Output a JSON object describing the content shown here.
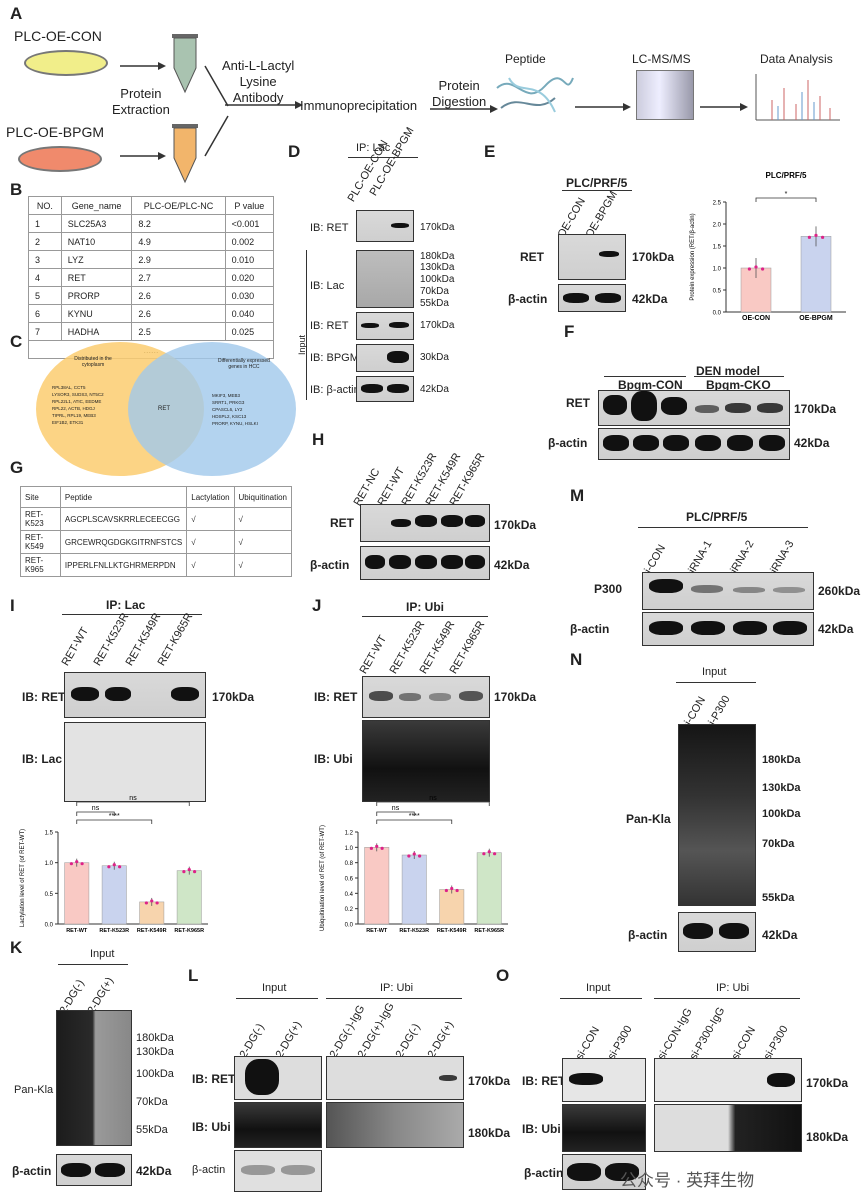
{
  "panelA": {
    "letter": "A",
    "sample1": "PLC-OE-CON",
    "sample2": "PLC-OE-BPGM",
    "protein_extraction": "Protein\nExtraction",
    "antibody": "Anti-L-Lactyl\nLysine\nAntibody",
    "ip": "Immunoprecipitation",
    "digestion": "Protein\nDigestion",
    "peptide": "Peptide",
    "lcms": "LC-MS/MS",
    "analysis": "Data Analysis"
  },
  "panelB": {
    "letter": "B",
    "headers": [
      "NO.",
      "Gene_name",
      "PLC-OE/PLC-NC",
      "P value"
    ],
    "rows": [
      [
        "1",
        "SLC25A3",
        "8.2",
        "<0.001"
      ],
      [
        "2",
        "NAT10",
        "4.9",
        "0.002"
      ],
      [
        "3",
        "LYZ",
        "2.9",
        "0.010"
      ],
      [
        "4",
        "RET",
        "2.7",
        "0.020"
      ],
      [
        "5",
        "PRORP",
        "2.6",
        "0.030"
      ],
      [
        "6",
        "KYNU",
        "2.6",
        "0.040"
      ],
      [
        "7",
        "HADHA",
        "2.5",
        "0.025"
      ]
    ],
    "more": "......"
  },
  "panelC": {
    "letter": "C",
    "left_title": "Distributed in the cytoplasm",
    "right_title": "Differentially expressed genes in HCC",
    "center": "RET",
    "left_genes": "RPL38AL, CCT5\nLYSOR3, SUDS3, NT5C2\nRPL22L1, ATIC, EEDME\nRPL22, ACTB, HDGJ\nTIPRL, RPL19, MEB3\nEIF1B2, ETK31",
    "right_genes": "MKIF3, MEB3\nSRRT1, PRKG3\nCPASCL6, LY2\nHDSPL2, KSC13\nPRORP, KYNU, HSLKI"
  },
  "panelD": {
    "letter": "D",
    "ip": "IP: Lac",
    "lanes": [
      "PLC-OE-CON",
      "PLC-OE-BPGM"
    ],
    "ib_ret": "IB: RET",
    "ib_lac": "IB: Lac",
    "ib_ret2": "IB: RET",
    "ib_bpgm": "IB: BPGM",
    "ib_actin": "IB: β-actin",
    "input": "Input",
    "mw": [
      "170kDa",
      "180kDa",
      "130kDa",
      "100kDa",
      "70kDa",
      "55kDa",
      "170kDa",
      "30kDa",
      "42kDa"
    ]
  },
  "panelE": {
    "letter": "E",
    "cell": "PLC/PRF/5",
    "lanes": [
      "OE-CON",
      "OE-BPGM"
    ],
    "ret": "RET",
    "actin": "β-actin",
    "mw1": "170kDa",
    "mw2": "42kDa"
  },
  "chart_data": [
    {
      "type": "bar",
      "panel": "E",
      "title": "PLC/PRF/5",
      "ylabel": "Protein expression (RET/β-actin)",
      "categories": [
        "OE-CON",
        "OE-BPGM"
      ],
      "values": [
        1.0,
        1.72
      ],
      "ylim": [
        0,
        2.5
      ],
      "yticks": [
        "0.0",
        "0.5",
        "1.0",
        "1.5",
        "2.0",
        "2.5"
      ],
      "significance": "*",
      "colors": [
        "#f9c9c4",
        "#c9d3ee"
      ]
    },
    {
      "type": "bar",
      "panel": "I",
      "ylabel": "Lactylation level of RET (of RET-WT)",
      "categories": [
        "RET-WT",
        "RET-K523R",
        "RET-K549R",
        "RET-K965R"
      ],
      "values": [
        1.0,
        0.95,
        0.36,
        0.87
      ],
      "ylim": [
        0,
        1.5
      ],
      "yticks": [
        "0.0",
        "0.5",
        "1.0",
        "1.5"
      ],
      "significance": [
        "ns",
        "****",
        "ns"
      ],
      "colors": [
        "#f9c9c4",
        "#c9d3ee",
        "#f7d4ad",
        "#cfe6c7"
      ]
    },
    {
      "type": "bar",
      "panel": "J",
      "ylabel": "Ubiquitination level of RET (of RET-WT)",
      "categories": [
        "RET-WT",
        "RET-K523R",
        "RET-K549R",
        "RET-K965R"
      ],
      "values": [
        1.0,
        0.9,
        0.45,
        0.93
      ],
      "ylim": [
        0,
        1.2
      ],
      "yticks": [
        "0.0",
        "0.2",
        "0.4",
        "0.6",
        "0.8",
        "1.0",
        "1.2"
      ],
      "significance": [
        "ns",
        "****",
        "ns"
      ],
      "colors": [
        "#f9c9c4",
        "#c9d3ee",
        "#f7d4ad",
        "#cfe6c7"
      ]
    }
  ],
  "panelF": {
    "letter": "F",
    "model": "DEN model",
    "group1": "Bpgm-CON",
    "group2": "Bpgm-CKO",
    "ret": "RET",
    "actin": "β-actin",
    "mw1": "170kDa",
    "mw2": "42kDa"
  },
  "panelG": {
    "letter": "G",
    "headers": [
      "Site",
      "Peptide",
      "Lactylation",
      "Ubiquitination"
    ],
    "rows": [
      [
        "RET-K523",
        "AGCPLSCAVSKRRLECEECGG",
        "√",
        "√"
      ],
      [
        "RET-K549",
        "GRCEWRQGDGKGITRNFSTCS",
        "√",
        "√"
      ],
      [
        "RET-K965",
        "IPPERLFNLLKTGHRMERPDN",
        "√",
        "√"
      ]
    ]
  },
  "panelH": {
    "letter": "H",
    "lanes": [
      "RET-NC",
      "RET-WT",
      "RET-K523R",
      "RET-K549R",
      "RET-K965R"
    ],
    "ret": "RET",
    "actin": "β-actin",
    "mw1": "170kDa",
    "mw2": "42kDa"
  },
  "panelI": {
    "letter": "I",
    "ip": "IP: Lac",
    "lanes": [
      "RET-WT",
      "RET-K523R",
      "RET-K549R",
      "RET-K965R"
    ],
    "ib_ret": "IB: RET",
    "ib_lac": "IB: Lac",
    "mw": "170kDa"
  },
  "panelJ": {
    "letter": "J",
    "ip": "IP: Ubi",
    "lanes": [
      "RET-WT",
      "RET-K523R",
      "RET-K549R",
      "RET-K965R"
    ],
    "ib_ret": "IB: RET",
    "ib_ubi": "IB: Ubi",
    "mw": "170kDa"
  },
  "panelM": {
    "letter": "M",
    "cell": "PLC/PRF/5",
    "lanes": [
      "si-CON",
      "siRNA-1",
      "siRNA-2",
      "siRNA-3"
    ],
    "p300": "P300",
    "actin": "β-actin",
    "mw1": "260kDa",
    "mw2": "42kDa"
  },
  "panelN": {
    "letter": "N",
    "input": "Input",
    "lanes": [
      "si-CON",
      "si-P300"
    ],
    "pan": "Pan-Kla",
    "actin": "β-actin",
    "mw": [
      "180kDa",
      "130kDa",
      "100kDa",
      "70kDa",
      "55kDa",
      "42kDa"
    ]
  },
  "panelK": {
    "letter": "K",
    "input": "Input",
    "lanes": [
      "2-DG(-)",
      "2-DG(+)"
    ],
    "pan": "Pan-Kla",
    "actin": "β-actin",
    "mw": [
      "180kDa",
      "130kDa",
      "100kDa",
      "70kDa",
      "55kDa",
      "42kDa"
    ]
  },
  "panelL": {
    "letter": "L",
    "input": "Input",
    "ip": "IP: Ubi",
    "lanes": [
      "2-DG(-)",
      "2-DG(+)",
      "2-DG(-)-IgG",
      "2-DG(+)-IgG",
      "2-DG(-)",
      "2-DG(+)"
    ],
    "ib_ret": "IB: RET",
    "ib_ubi": "IB: Ubi",
    "actin": "β-actin",
    "mw1": "170kDa",
    "mw2": "180kDa"
  },
  "panelO": {
    "letter": "O",
    "input": "Input",
    "ip": "IP: Ubi",
    "lanes": [
      "si-CON",
      "si-P300",
      "si-CON-IgG",
      "si-P300-IgG",
      "si-CON",
      "si-P300"
    ],
    "ib_ret": "IB: RET",
    "ib_ubi": "IB: Ubi",
    "actin": "β-actin",
    "mw1": "170kDa",
    "mw2": "180kDa"
  },
  "watermark": "公众号 · 英拜生物"
}
